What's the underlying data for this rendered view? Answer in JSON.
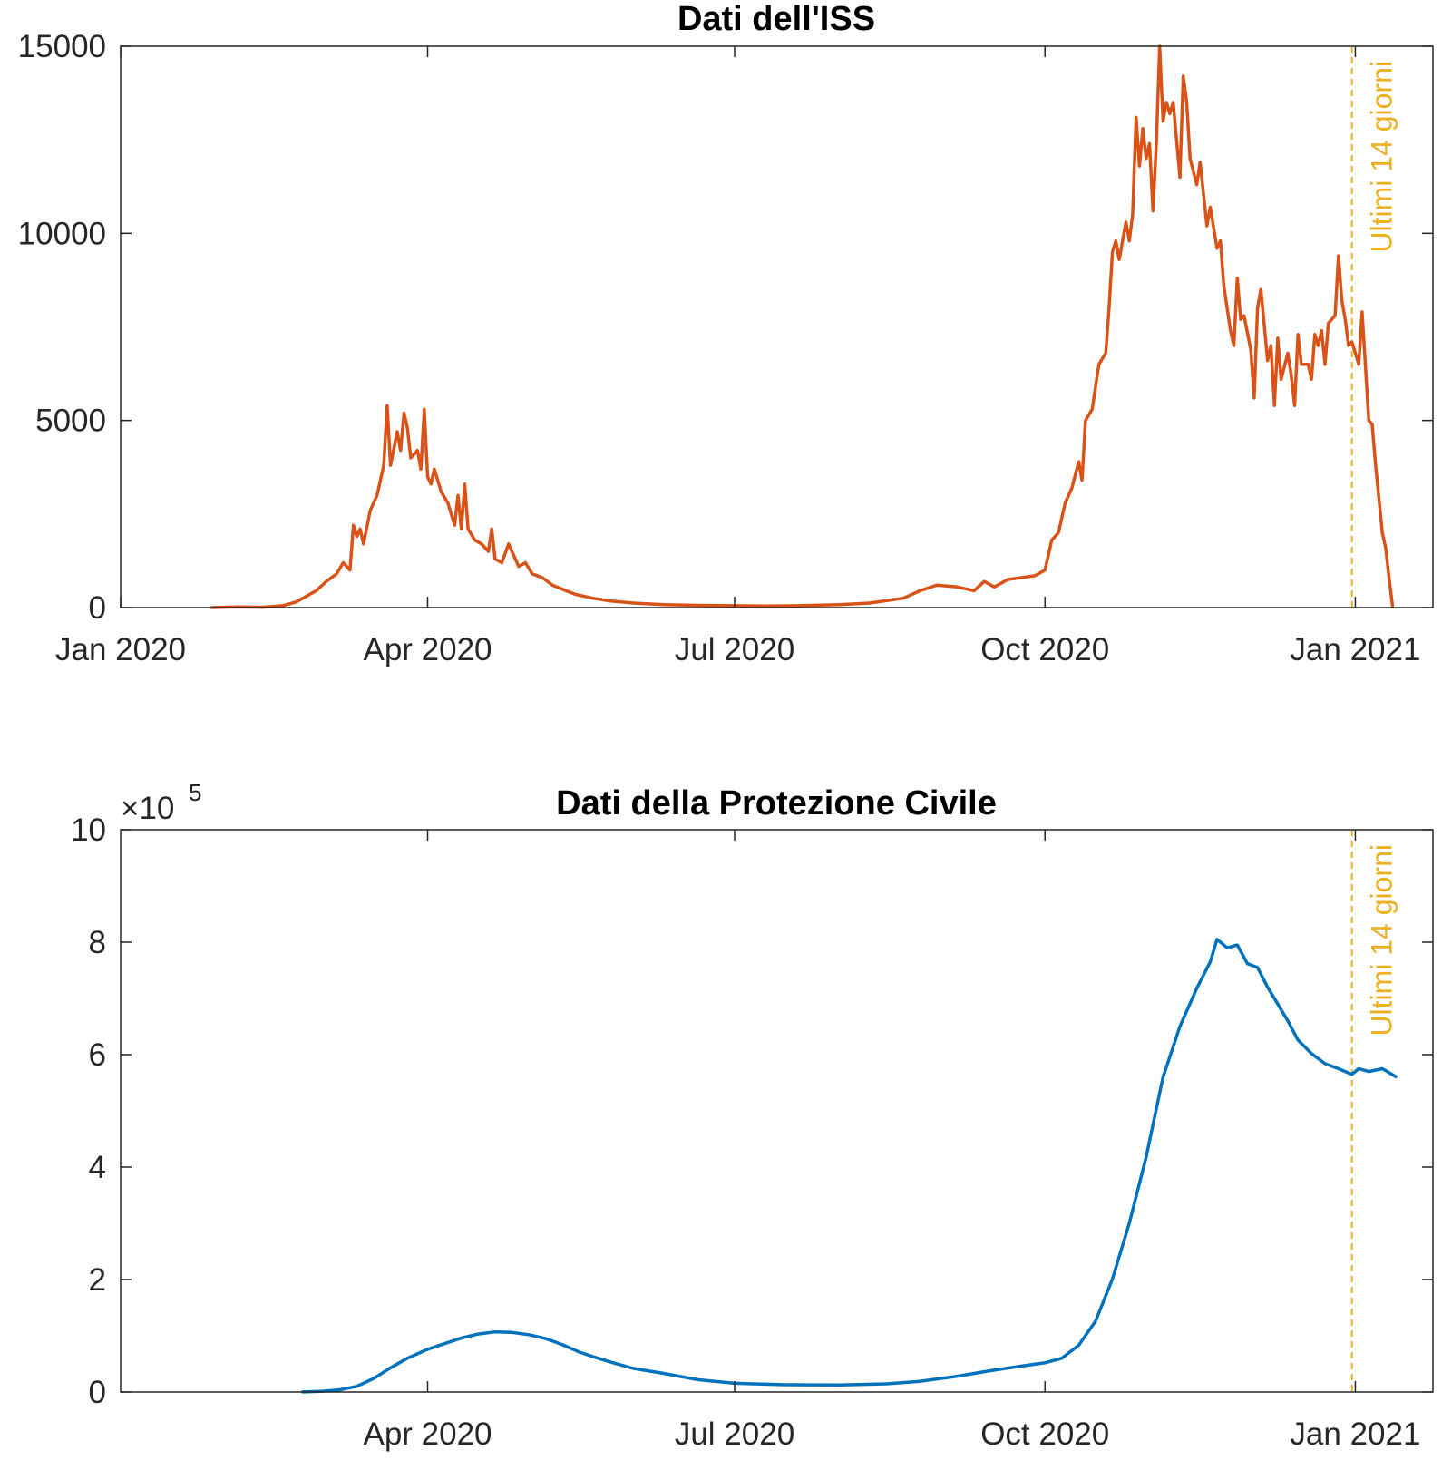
{
  "chart_data": [
    {
      "type": "line",
      "title": "Dati dell'ISS",
      "xlabel": "",
      "ylabel": "",
      "exponent": "",
      "xlim": [
        "2020-01-01",
        "2021-01-24"
      ],
      "ylim": [
        0,
        15000
      ],
      "xticks": [
        {
          "date": "2020-01-01",
          "label": "Jan 2020"
        },
        {
          "date": "2020-04-01",
          "label": "Apr 2020"
        },
        {
          "date": "2020-07-01",
          "label": "Jul 2020"
        },
        {
          "date": "2020-10-01",
          "label": "Oct 2020"
        },
        {
          "date": "2021-01-01",
          "label": "Jan 2021"
        }
      ],
      "yticks": [
        {
          "value": 0,
          "label": "0"
        },
        {
          "value": 5000,
          "label": "5000"
        },
        {
          "value": 10000,
          "label": "10000"
        },
        {
          "value": 15000,
          "label": "15000"
        }
      ],
      "grid": false,
      "annotation": {
        "date": "2020-12-31",
        "text": "Ultimi 14 giorni",
        "color": "#EDB120"
      },
      "series": [
        {
          "color": "#D95319",
          "points": [
            [
              "2020-01-28",
              0
            ],
            [
              "2020-02-05",
              20
            ],
            [
              "2020-02-12",
              10
            ],
            [
              "2020-02-18",
              50
            ],
            [
              "2020-02-22",
              150
            ],
            [
              "2020-02-25",
              300
            ],
            [
              "2020-02-28",
              450
            ],
            [
              "2020-03-02",
              700
            ],
            [
              "2020-03-05",
              900
            ],
            [
              "2020-03-07",
              1200
            ],
            [
              "2020-03-09",
              1000
            ],
            [
              "2020-03-10",
              2200
            ],
            [
              "2020-03-11",
              1900
            ],
            [
              "2020-03-12",
              2100
            ],
            [
              "2020-03-13",
              1700
            ],
            [
              "2020-03-15",
              2600
            ],
            [
              "2020-03-17",
              3000
            ],
            [
              "2020-03-19",
              3800
            ],
            [
              "2020-03-20",
              5400
            ],
            [
              "2020-03-21",
              3800
            ],
            [
              "2020-03-23",
              4700
            ],
            [
              "2020-03-24",
              4200
            ],
            [
              "2020-03-25",
              5200
            ],
            [
              "2020-03-26",
              4800
            ],
            [
              "2020-03-27",
              4000
            ],
            [
              "2020-03-29",
              4200
            ],
            [
              "2020-03-30",
              3700
            ],
            [
              "2020-03-31",
              5300
            ],
            [
              "2020-04-01",
              3500
            ],
            [
              "2020-04-02",
              3300
            ],
            [
              "2020-04-03",
              3700
            ],
            [
              "2020-04-05",
              3100
            ],
            [
              "2020-04-07",
              2800
            ],
            [
              "2020-04-09",
              2200
            ],
            [
              "2020-04-10",
              3000
            ],
            [
              "2020-04-11",
              2100
            ],
            [
              "2020-04-12",
              3300
            ],
            [
              "2020-04-13",
              2100
            ],
            [
              "2020-04-15",
              1800
            ],
            [
              "2020-04-17",
              1700
            ],
            [
              "2020-04-19",
              1500
            ],
            [
              "2020-04-20",
              2100
            ],
            [
              "2020-04-21",
              1300
            ],
            [
              "2020-04-23",
              1200
            ],
            [
              "2020-04-25",
              1700
            ],
            [
              "2020-04-28",
              1100
            ],
            [
              "2020-04-30",
              1200
            ],
            [
              "2020-05-02",
              900
            ],
            [
              "2020-05-05",
              800
            ],
            [
              "2020-05-08",
              600
            ],
            [
              "2020-05-12",
              450
            ],
            [
              "2020-05-15",
              350
            ],
            [
              "2020-05-20",
              250
            ],
            [
              "2020-05-25",
              180
            ],
            [
              "2020-06-01",
              120
            ],
            [
              "2020-06-10",
              80
            ],
            [
              "2020-06-20",
              60
            ],
            [
              "2020-07-01",
              50
            ],
            [
              "2020-07-10",
              40
            ],
            [
              "2020-07-20",
              50
            ],
            [
              "2020-08-01",
              80
            ],
            [
              "2020-08-10",
              120
            ],
            [
              "2020-08-20",
              250
            ],
            [
              "2020-08-25",
              450
            ],
            [
              "2020-08-30",
              600
            ],
            [
              "2020-09-05",
              550
            ],
            [
              "2020-09-10",
              450
            ],
            [
              "2020-09-13",
              700
            ],
            [
              "2020-09-16",
              550
            ],
            [
              "2020-09-20",
              750
            ],
            [
              "2020-09-24",
              800
            ],
            [
              "2020-09-28",
              850
            ],
            [
              "2020-10-01",
              1000
            ],
            [
              "2020-10-03",
              1800
            ],
            [
              "2020-10-05",
              2000
            ],
            [
              "2020-10-07",
              2800
            ],
            [
              "2020-10-09",
              3200
            ],
            [
              "2020-10-11",
              3900
            ],
            [
              "2020-10-12",
              3400
            ],
            [
              "2020-10-13",
              5000
            ],
            [
              "2020-10-15",
              5300
            ],
            [
              "2020-10-17",
              6500
            ],
            [
              "2020-10-19",
              6800
            ],
            [
              "2020-10-20",
              8000
            ],
            [
              "2020-10-21",
              9500
            ],
            [
              "2020-10-22",
              9800
            ],
            [
              "2020-10-23",
              9300
            ],
            [
              "2020-10-25",
              10300
            ],
            [
              "2020-10-26",
              9800
            ],
            [
              "2020-10-27",
              10500
            ],
            [
              "2020-10-28",
              13100
            ],
            [
              "2020-10-29",
              11800
            ],
            [
              "2020-10-30",
              12800
            ],
            [
              "2020-10-31",
              12000
            ],
            [
              "2020-11-01",
              12400
            ],
            [
              "2020-11-02",
              10600
            ],
            [
              "2020-11-03",
              12400
            ],
            [
              "2020-11-04",
              15000
            ],
            [
              "2020-11-05",
              13000
            ],
            [
              "2020-11-06",
              13500
            ],
            [
              "2020-11-07",
              13200
            ],
            [
              "2020-11-08",
              13500
            ],
            [
              "2020-11-10",
              11500
            ],
            [
              "2020-11-11",
              14200
            ],
            [
              "2020-11-12",
              13500
            ],
            [
              "2020-11-13",
              12000
            ],
            [
              "2020-11-15",
              11300
            ],
            [
              "2020-11-16",
              11900
            ],
            [
              "2020-11-18",
              10200
            ],
            [
              "2020-11-19",
              10700
            ],
            [
              "2020-11-21",
              9600
            ],
            [
              "2020-11-22",
              9800
            ],
            [
              "2020-11-23",
              8600
            ],
            [
              "2020-11-25",
              7400
            ],
            [
              "2020-11-26",
              7000
            ],
            [
              "2020-11-27",
              8800
            ],
            [
              "2020-11-28",
              7700
            ],
            [
              "2020-11-29",
              7800
            ],
            [
              "2020-12-01",
              6900
            ],
            [
              "2020-12-02",
              5600
            ],
            [
              "2020-12-03",
              8000
            ],
            [
              "2020-12-04",
              8500
            ],
            [
              "2020-12-06",
              6600
            ],
            [
              "2020-12-07",
              7000
            ],
            [
              "2020-12-08",
              5400
            ],
            [
              "2020-12-09",
              7200
            ],
            [
              "2020-12-10",
              6100
            ],
            [
              "2020-12-12",
              6800
            ],
            [
              "2020-12-13",
              6200
            ],
            [
              "2020-12-14",
              5400
            ],
            [
              "2020-12-15",
              7300
            ],
            [
              "2020-12-16",
              6500
            ],
            [
              "2020-12-18",
              6500
            ],
            [
              "2020-12-19",
              6100
            ],
            [
              "2020-12-20",
              7300
            ],
            [
              "2020-12-21",
              7000
            ],
            [
              "2020-12-22",
              7400
            ],
            [
              "2020-12-23",
              6500
            ],
            [
              "2020-12-24",
              7600
            ],
            [
              "2020-12-26",
              7800
            ],
            [
              "2020-12-27",
              9400
            ],
            [
              "2020-12-28",
              8200
            ],
            [
              "2020-12-29",
              7700
            ],
            [
              "2020-12-30",
              7000
            ],
            [
              "2020-12-31",
              7100
            ],
            [
              "2021-01-01",
              6800
            ],
            [
              "2021-01-02",
              6500
            ],
            [
              "2021-01-03",
              7900
            ],
            [
              "2021-01-05",
              5000
            ],
            [
              "2021-01-06",
              4900
            ],
            [
              "2021-01-07",
              3800
            ],
            [
              "2021-01-09",
              2000
            ],
            [
              "2021-01-10",
              1600
            ],
            [
              "2021-01-11",
              800
            ],
            [
              "2021-01-12",
              50
            ]
          ]
        }
      ]
    },
    {
      "type": "line",
      "title": "Dati della Protezione Civile",
      "xlabel": "",
      "ylabel": "",
      "exponent": "5",
      "xlim": [
        "2020-01-01",
        "2021-01-24"
      ],
      "ylim": [
        0,
        1000000
      ],
      "xticks": [
        {
          "date": "2020-04-01",
          "label": "Apr 2020"
        },
        {
          "date": "2020-07-01",
          "label": "Jul 2020"
        },
        {
          "date": "2020-10-01",
          "label": "Oct 2020"
        },
        {
          "date": "2021-01-01",
          "label": "Jan 2021"
        }
      ],
      "yticks": [
        {
          "value": 0,
          "label": "0"
        },
        {
          "value": 200000,
          "label": "2"
        },
        {
          "value": 400000,
          "label": "4"
        },
        {
          "value": 600000,
          "label": "6"
        },
        {
          "value": 800000,
          "label": "8"
        },
        {
          "value": 1000000,
          "label": "10"
        }
      ],
      "grid": false,
      "annotation": {
        "date": "2020-12-31",
        "text": "Ultimi 14 giorni",
        "color": "#EDB120"
      },
      "series": [
        {
          "color": "#0072BD",
          "points": [
            [
              "2020-02-24",
              200
            ],
            [
              "2020-03-01",
              1500
            ],
            [
              "2020-03-06",
              4000
            ],
            [
              "2020-03-11",
              10000
            ],
            [
              "2020-03-16",
              24000
            ],
            [
              "2020-03-21",
              43000
            ],
            [
              "2020-03-26",
              60000
            ],
            [
              "2020-04-01",
              76000
            ],
            [
              "2020-04-06",
              86000
            ],
            [
              "2020-04-11",
              96000
            ],
            [
              "2020-04-16",
              103000
            ],
            [
              "2020-04-21",
              107000
            ],
            [
              "2020-04-26",
              106000
            ],
            [
              "2020-05-01",
              102000
            ],
            [
              "2020-05-06",
              95000
            ],
            [
              "2020-05-11",
              84000
            ],
            [
              "2020-05-16",
              71000
            ],
            [
              "2020-05-21",
              61000
            ],
            [
              "2020-05-26",
              52000
            ],
            [
              "2020-06-01",
              42000
            ],
            [
              "2020-06-10",
              33000
            ],
            [
              "2020-06-20",
              22000
            ],
            [
              "2020-07-01",
              15500
            ],
            [
              "2020-07-15",
              13000
            ],
            [
              "2020-08-01",
              12500
            ],
            [
              "2020-08-15",
              14500
            ],
            [
              "2020-08-25",
              19000
            ],
            [
              "2020-09-05",
              28000
            ],
            [
              "2020-09-15",
              38000
            ],
            [
              "2020-09-25",
              47000
            ],
            [
              "2020-10-01",
              52000
            ],
            [
              "2020-10-06",
              60000
            ],
            [
              "2020-10-11",
              83000
            ],
            [
              "2020-10-16",
              126000
            ],
            [
              "2020-10-21",
              201000
            ],
            [
              "2020-10-26",
              300000
            ],
            [
              "2020-10-31",
              418000
            ],
            [
              "2020-11-05",
              560000
            ],
            [
              "2020-11-10",
              650000
            ],
            [
              "2020-11-15",
              718000
            ],
            [
              "2020-11-19",
              765000
            ],
            [
              "2020-11-21",
              805000
            ],
            [
              "2020-11-24",
              790000
            ],
            [
              "2020-11-27",
              795000
            ],
            [
              "2020-11-30",
              762000
            ],
            [
              "2020-12-03",
              755000
            ],
            [
              "2020-12-06",
              720000
            ],
            [
              "2020-12-09",
              690000
            ],
            [
              "2020-12-12",
              660000
            ],
            [
              "2020-12-15",
              626000
            ],
            [
              "2020-12-19",
              602000
            ],
            [
              "2020-12-23",
              584000
            ],
            [
              "2020-12-27",
              575000
            ],
            [
              "2020-12-31",
              565000
            ],
            [
              "2021-01-02",
              575000
            ],
            [
              "2021-01-05",
              570000
            ],
            [
              "2021-01-09",
              575000
            ],
            [
              "2021-01-13",
              561000
            ]
          ]
        }
      ]
    }
  ]
}
